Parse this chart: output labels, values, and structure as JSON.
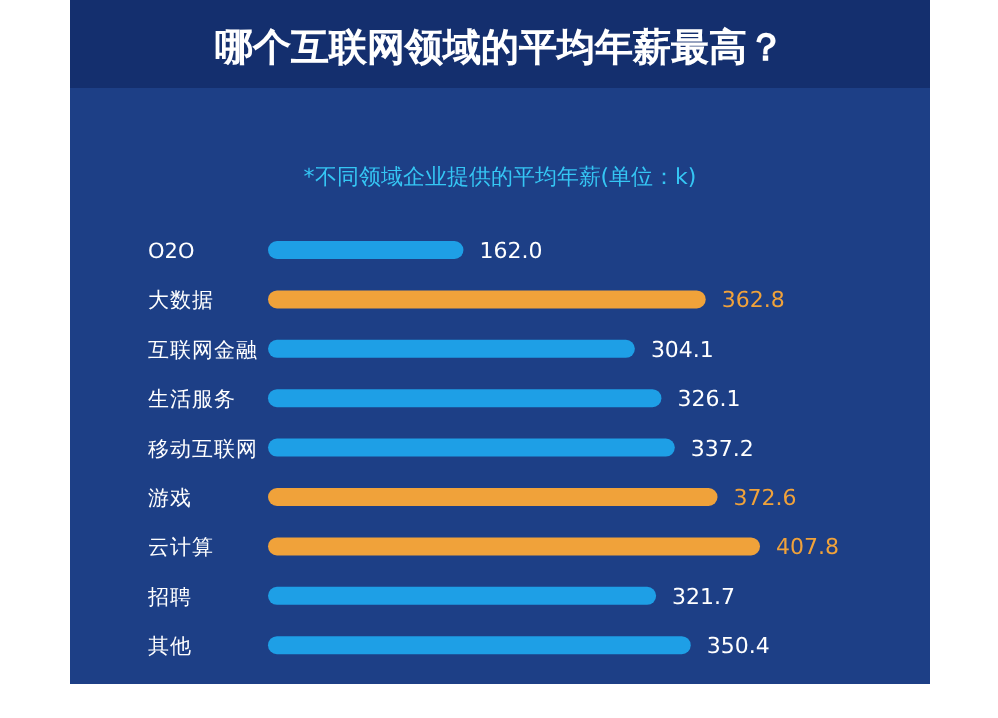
{
  "chart_data": {
    "type": "bar",
    "orientation": "horizontal",
    "title": "哪个互联网领域的平均年薪最高？",
    "subtitle": "*不同领域企业提供的平均年薪(单位：k)",
    "categories": [
      "O2O",
      "大数据",
      "互联网金融",
      "生活服务",
      "移动互联网",
      "游戏",
      "云计算",
      "招聘",
      "其他"
    ],
    "values": [
      162.0,
      362.8,
      304.1,
      326.1,
      337.2,
      372.6,
      407.8,
      321.7,
      350.4
    ],
    "value_labels": [
      "162.0",
      "362.8",
      "304.1",
      "326.1",
      "337.2",
      "372.6",
      "407.8",
      "321.7",
      "350.4"
    ],
    "colors": [
      "#1e9fe6",
      "#f0a23a",
      "#1e9fe6",
      "#1e9fe6",
      "#1e9fe6",
      "#f0a23a",
      "#f0a23a",
      "#1e9fe6",
      "#1e9fe6"
    ],
    "data_labels": true
  }
}
